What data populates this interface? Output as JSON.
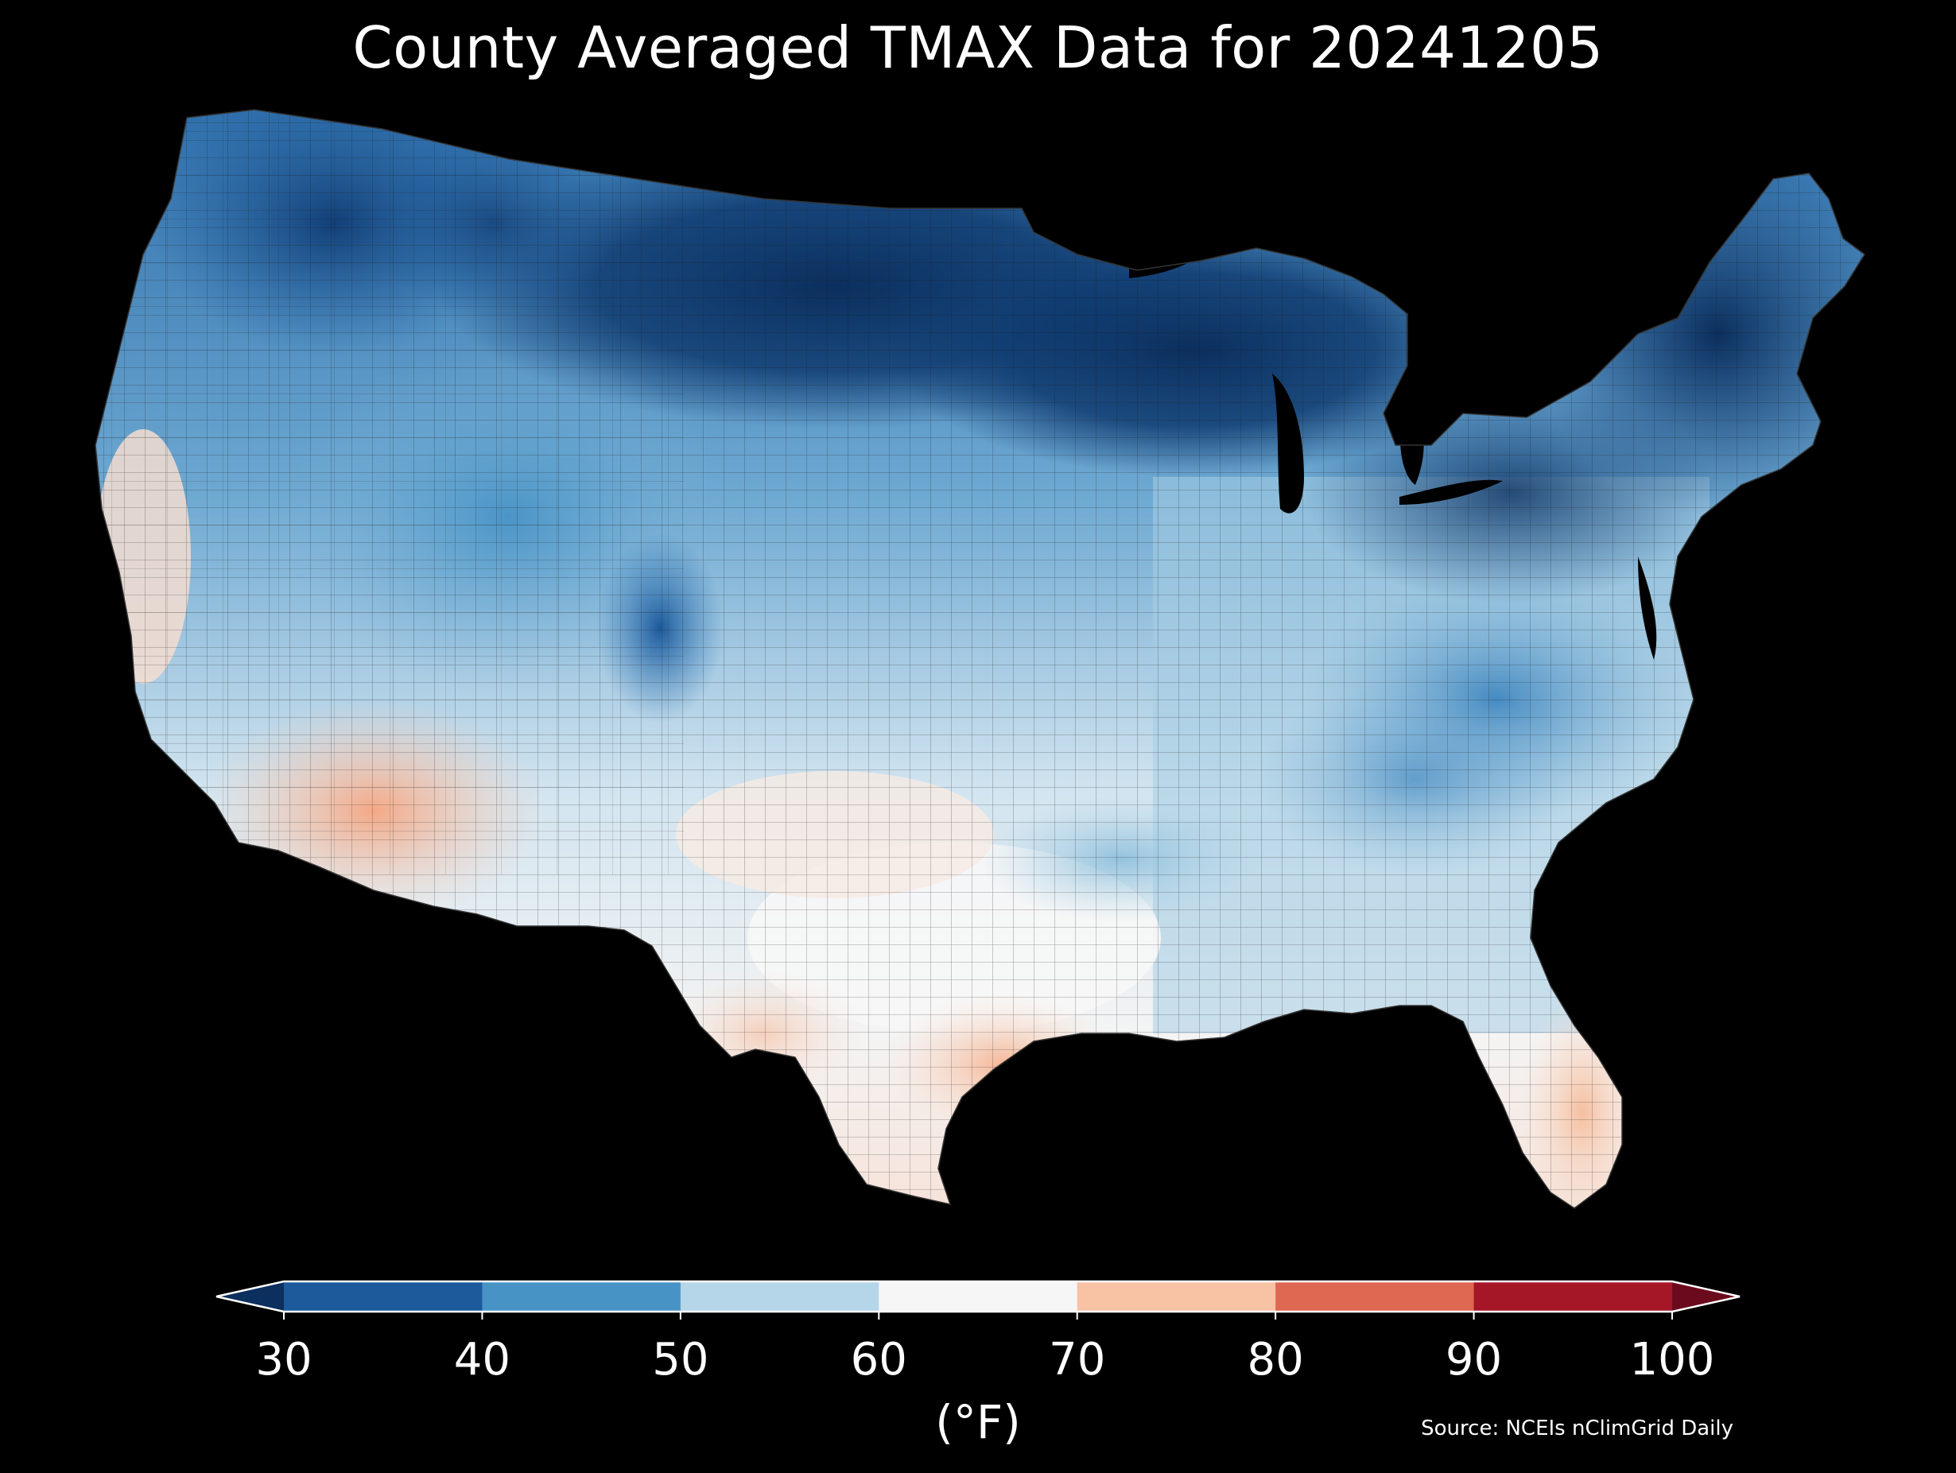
{
  "title": "County Averaged TMAX Data for 20241205",
  "colorbar": {
    "ticks": [
      "30",
      "40",
      "50",
      "60",
      "70",
      "80",
      "90",
      "100"
    ],
    "bins": [
      {
        "range": "<30",
        "color": "#0b2f5e"
      },
      {
        "range": "30-40",
        "color": "#1c5a9c"
      },
      {
        "range": "40-50",
        "color": "#4793c6"
      },
      {
        "range": "50-60",
        "color": "#b4d6e8"
      },
      {
        "range": "60-70",
        "color": "#f6f6f6"
      },
      {
        "range": "70-80",
        "color": "#f8c2a5"
      },
      {
        "range": "80-90",
        "color": "#de6852"
      },
      {
        "range": "90-100",
        "color": "#a51727"
      },
      {
        "range": ">100",
        "color": "#6b0a1d"
      }
    ],
    "unit_label": "(°F)"
  },
  "source": "Source: NCEIs nClimGrid Daily",
  "map_regions": [
    {
      "region": "pacific-northwest",
      "band": "30-40"
    },
    {
      "region": "northern-plains-great-lakes",
      "band": "<30"
    },
    {
      "region": "new-england",
      "band": "<30"
    },
    {
      "region": "great-basin",
      "band": "40-50"
    },
    {
      "region": "central-plains",
      "band": "60-70"
    },
    {
      "region": "ohio-valley-mid-atlantic",
      "band": "40-50"
    },
    {
      "region": "southeast",
      "band": "60-70"
    },
    {
      "region": "southwest-desert",
      "band": "70-80"
    },
    {
      "region": "south-texas-gulf",
      "band": "70-80"
    },
    {
      "region": "florida",
      "band": "70-80"
    }
  ]
}
